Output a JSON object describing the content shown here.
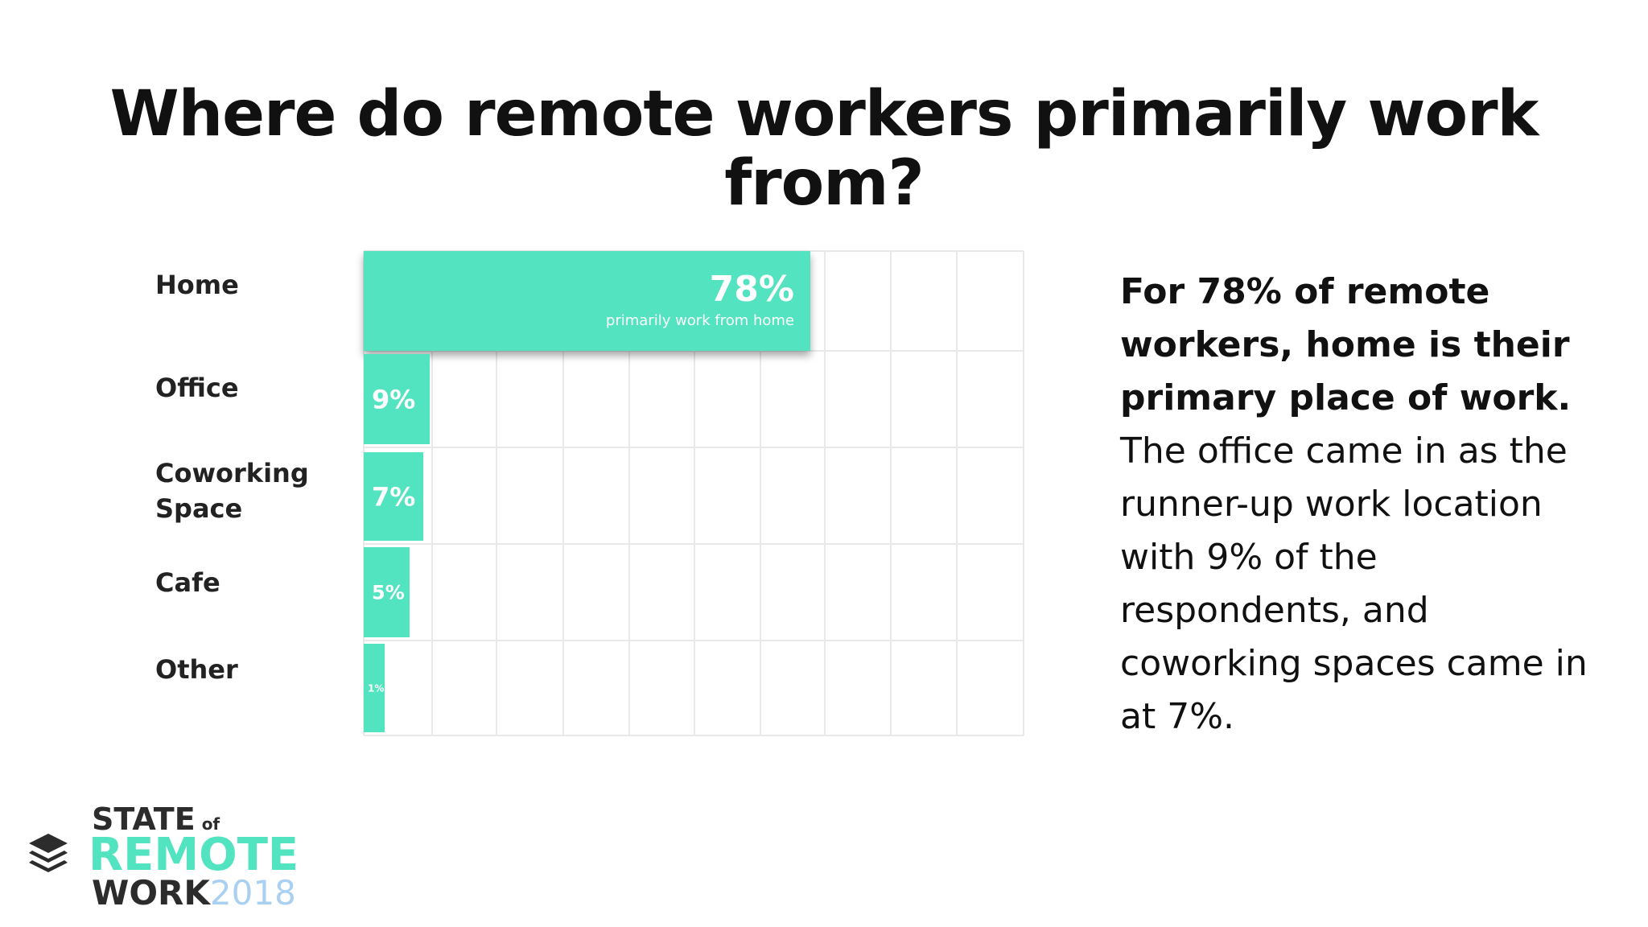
{
  "title": "Where do remote workers primarily work from?",
  "colors": {
    "bar": "#52e3c0",
    "bar_text": "#ffffff",
    "grid": "#e9e9e9",
    "accent_year": "#a9d0f0"
  },
  "chart_data": {
    "type": "bar",
    "orientation": "horizontal",
    "title": "Where do remote workers primarily work from?",
    "categories": [
      "Home",
      "Office",
      "Coworking Space",
      "Cafe",
      "Other"
    ],
    "values": [
      78,
      9,
      7,
      5,
      1
    ],
    "value_labels": [
      "78%",
      "9%",
      "7%",
      "5%",
      "1%"
    ],
    "annotation": "primarily work from home",
    "xlim": [
      0,
      100
    ],
    "grid": true,
    "legend": "none"
  },
  "labels": {
    "home": "Home",
    "office": "Office",
    "coworking_line1": "Coworking",
    "coworking_line2": "Space",
    "cafe": "Cafe",
    "other": "Other"
  },
  "side_text": {
    "lead": "For 78% of remote workers, home is their primary place of work.",
    "body": "The office came in as the runner-up work location with 9% of the respondents, and coworking spaces came in at 7%."
  },
  "logo": {
    "line1": "STATE",
    "of": "of",
    "line2": "REMOTE",
    "line3": "WORK",
    "year": "2018",
    "icon": "stacked-layers-icon"
  }
}
